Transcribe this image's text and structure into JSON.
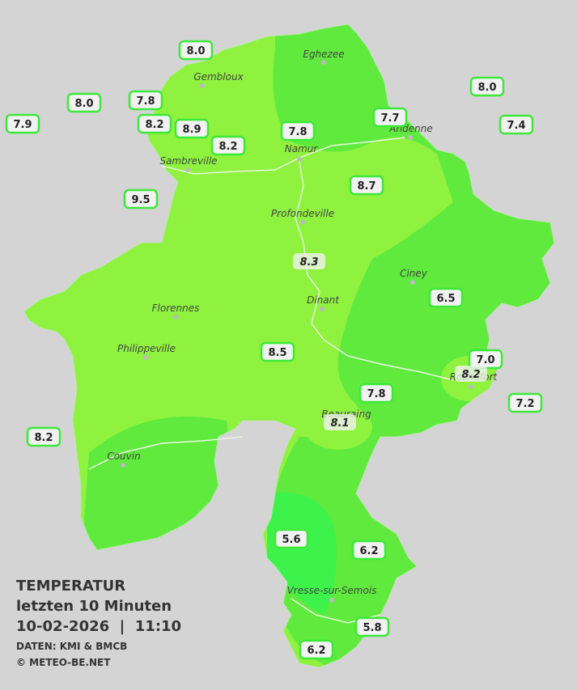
{
  "title": {
    "line1": "TEMPERATUR",
    "line2": "letzten 10 Minuten",
    "line3": "10-02-2026  |  11:10",
    "source": "DATEN: KMI & BMCB",
    "credit": "© METEO-BE.NET"
  },
  "towns": [
    "Eghezee",
    "Gembloux",
    "Andenne",
    "Namur",
    "Sambreville",
    "Profondeville",
    "Ciney",
    "Dinant",
    "Florennes",
    "Philippeville",
    "Rochefort",
    "Beauraing",
    "Couvin",
    "Vresse-sur-Semois"
  ],
  "stations": [
    "8.0",
    "7.8",
    "8.0",
    "7.9",
    "8.2",
    "8.9",
    "8.2",
    "7.8",
    "7.7",
    "8.0",
    "7.4",
    "9.5",
    "8.7",
    "8.3",
    "6.5",
    "8.5",
    "7.0",
    "8.2",
    "7.2",
    "7.8",
    "8.1",
    "8.2",
    "5.6",
    "6.2",
    "5.8",
    "6.2"
  ]
}
